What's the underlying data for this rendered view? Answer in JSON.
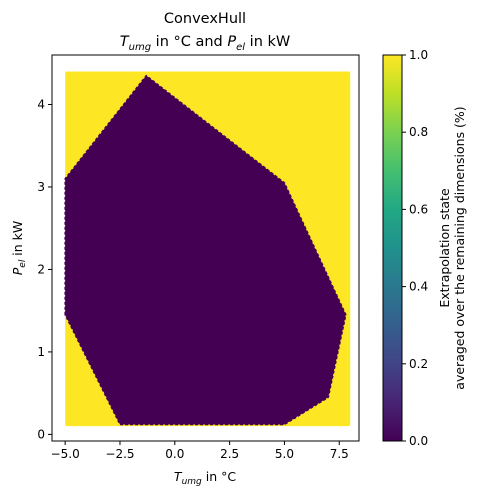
{
  "chart_data": {
    "type": "heatmap",
    "title_line1": "ConvexHull",
    "title_line2": {
      "x_sym": "T",
      "x_sub": "umg",
      "x_unit": " in °C and ",
      "y_sym": "P",
      "y_sub": "el",
      "y_unit": " in kW"
    },
    "xlabel": {
      "sym": "T",
      "sub": "umg",
      "unit": " in °C"
    },
    "ylabel": {
      "sym": "P",
      "sub": "el",
      "unit": " in kW"
    },
    "xlim": [
      -5.6,
      8.4
    ],
    "ylim": [
      -0.08,
      4.6
    ],
    "x_ticks": [
      {
        "value": -5.0,
        "label": "−5.0"
      },
      {
        "value": -2.5,
        "label": "−2.5"
      },
      {
        "value": 0.0,
        "label": "0.0"
      },
      {
        "value": 2.5,
        "label": "2.5"
      },
      {
        "value": 5.0,
        "label": "5.0"
      },
      {
        "value": 7.5,
        "label": "7.5"
      }
    ],
    "y_ticks": [
      {
        "value": 0,
        "label": "0"
      },
      {
        "value": 1,
        "label": "1"
      },
      {
        "value": 2,
        "label": "2"
      },
      {
        "value": 3,
        "label": "3"
      },
      {
        "value": 4,
        "label": "4"
      }
    ],
    "data_domain": {
      "x": [
        -5.0,
        8.0
      ],
      "y": [
        0.1,
        4.4
      ]
    },
    "outside_value": 1.0,
    "inside_value": 0.0,
    "hull_polygon": [
      [
        -5.0,
        1.45
      ],
      [
        -5.0,
        3.1
      ],
      [
        -1.3,
        4.35
      ],
      [
        5.0,
        3.05
      ],
      [
        7.8,
        1.45
      ],
      [
        7.0,
        0.45
      ],
      [
        5.0,
        0.12
      ],
      [
        -2.5,
        0.12
      ]
    ],
    "colorbar": {
      "label_line1": "Extrapolation state",
      "label_line2": "averaged over the remaining dimensions (%)",
      "range": [
        0.0,
        1.0
      ],
      "ticks": [
        {
          "value": 0.0,
          "label": "0.0"
        },
        {
          "value": 0.2,
          "label": "0.2"
        },
        {
          "value": 0.4,
          "label": "0.4"
        },
        {
          "value": 0.6,
          "label": "0.6"
        },
        {
          "value": 0.8,
          "label": "0.8"
        },
        {
          "value": 1.0,
          "label": "1.0"
        }
      ],
      "colormap": "viridis"
    },
    "colors": {
      "low": "#440154",
      "high": "#fde725"
    }
  }
}
